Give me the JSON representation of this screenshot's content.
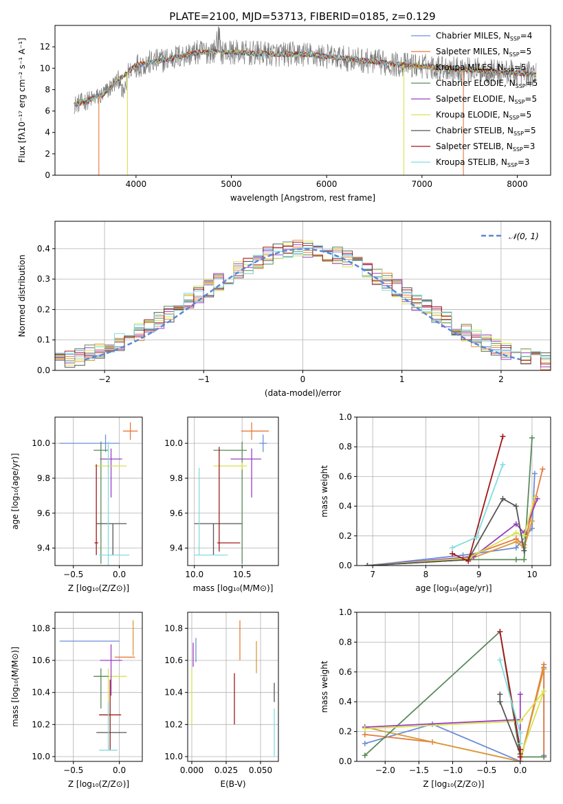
{
  "title": "PLATE=2100, MJD=53713, FIBERID=0185, z=0.129",
  "colors": {
    "Chabrier MILES": "#6b8ed6",
    "Salpeter MILES": "#e8793a",
    "Kroupa MILES": "#d89a3a",
    "Chabrier ELODIE": "#5a8a5a",
    "Salpeter ELODIE": "#9b3dbf",
    "Kroupa ELODIE": "#d7e24a",
    "Chabrier STELIB": "#555555",
    "Salpeter STELIB": "#a01818",
    "Kroupa STELIB": "#7fdde0"
  },
  "chart_data": [
    {
      "id": "spectrum",
      "type": "line",
      "title": "PLATE=2100, MJD=53713, FIBERID=0185, z=0.129",
      "xlabel": "wavelength [Angstrom, rest frame]",
      "ylabel": "Flux [fλ10⁻¹⁷ erg cm⁻² s⁻¹ A⁻¹]",
      "xlim": [
        3150,
        8350
      ],
      "ylim": [
        0,
        14
      ],
      "xticks": [
        4000,
        5000,
        6000,
        7000,
        8000
      ],
      "yticks": [
        0,
        2,
        4,
        6,
        8,
        10,
        12
      ],
      "grid": false,
      "legend_position": "top-right",
      "legend": [
        {
          "model": "Chabrier MILES",
          "label": "Chabrier MILES, N",
          "sub": "SSP",
          "tail": "=4"
        },
        {
          "model": "Salpeter MILES",
          "label": "Salpeter MILES, N",
          "sub": "SSP",
          "tail": "=5"
        },
        {
          "model": "Kroupa MILES",
          "label": "Kroupa MILES, N",
          "sub": "SSP",
          "tail": "=5"
        },
        {
          "model": "Chabrier ELODIE",
          "label": "Chabrier ELODIE, N",
          "sub": "SSP",
          "tail": "=5"
        },
        {
          "model": "Salpeter ELODIE",
          "label": "Salpeter ELODIE, N",
          "sub": "SSP",
          "tail": "=5"
        },
        {
          "model": "Kroupa ELODIE",
          "label": "Kroupa ELODIE, N",
          "sub": "SSP",
          "tail": "=5"
        },
        {
          "model": "Chabrier STELIB",
          "label": "Chabrier STELIB, N",
          "sub": "SSP",
          "tail": "=5"
        },
        {
          "model": "Salpeter STELIB",
          "label": "Salpeter STELIB, N",
          "sub": "SSP",
          "tail": "=3"
        },
        {
          "model": "Kroupa STELIB",
          "label": "Kroupa STELIB, N",
          "sub": "SSP",
          "tail": "=3"
        }
      ],
      "data_x_range": [
        3350,
        8200
      ],
      "continuum": {
        "x": [
          3350,
          3500,
          3650,
          3800,
          4000,
          4200,
          4400,
          4600,
          4800,
          5000,
          5200,
          5500,
          5800,
          6100,
          6400,
          6700,
          7000,
          7300,
          7600,
          7900,
          8200
        ],
        "y": [
          6.6,
          7.0,
          7.5,
          8.8,
          10.3,
          10.6,
          11.0,
          11.4,
          11.6,
          11.5,
          11.4,
          11.3,
          11.3,
          11.0,
          10.7,
          10.4,
          10.2,
          10.0,
          9.8,
          9.6,
          9.4
        ]
      },
      "model_cutoffs": [
        {
          "model": "Salpeter MILES",
          "x": [
            3350,
            3610
          ],
          "y": 0
        },
        {
          "model": "Kroupa ELODIE",
          "x": [
            3880,
            3910
          ],
          "y": 0
        },
        {
          "model": "Kroupa ELODIE",
          "x": [
            6790,
            6810
          ],
          "y": 0
        },
        {
          "model": "Salpeter MILES",
          "x": [
            7420,
            7435
          ],
          "y": 0
        }
      ]
    },
    {
      "id": "residuals",
      "type": "bar",
      "xlabel": "(data-model)/error",
      "ylabel": "Normed distribution",
      "xlim": [
        -2.5,
        2.5
      ],
      "ylim": [
        0,
        0.49
      ],
      "xticks": [
        -2,
        -1,
        0,
        1,
        2
      ],
      "yticks": [
        0.0,
        0.1,
        0.2,
        0.3,
        0.4
      ],
      "grid": true,
      "legend_position": "top-right",
      "legend": [
        {
          "label": "𝒩(0, 1)",
          "style": "dashed",
          "color": "#5a86d6"
        }
      ],
      "bin_width": 0.1,
      "reference_curve": {
        "name": "𝒩(0, 1)",
        "mean": 0,
        "sigma": 1
      }
    },
    {
      "id": "age-vs-Z",
      "type": "scatter",
      "xlabel": "Z [log₁₀(Z/Z⊙)]",
      "ylabel": "age  [log₁₀(age/yr)]",
      "xlim": [
        -0.7,
        0.25
      ],
      "ylim": [
        9.3,
        10.15
      ],
      "xticks": [
        -0.5,
        0.0
      ],
      "yticks": [
        9.4,
        9.6,
        9.8,
        10.0
      ],
      "grid": true,
      "points": [
        {
          "model": "Chabrier MILES",
          "x": -0.15,
          "xerr": [
            0.5,
            0.15
          ],
          "y": 10.0,
          "yerr": [
            0.05,
            0.05
          ]
        },
        {
          "model": "Salpeter MILES",
          "x": 0.12,
          "xerr": [
            0.08,
            0.08
          ],
          "y": 10.07,
          "yerr": [
            0.05,
            0.05
          ]
        },
        {
          "model": "Chabrier ELODIE",
          "x": -0.2,
          "xerr": [
            0.08,
            0.08
          ],
          "y": 9.96,
          "yerr": [
            0.65,
            0.05
          ]
        },
        {
          "model": "Salpeter ELODIE",
          "x": -0.09,
          "xerr": [
            0.12,
            0.12
          ],
          "y": 9.91,
          "yerr": [
            0.22,
            0.06
          ]
        },
        {
          "model": "Kroupa ELODIE",
          "x": -0.12,
          "xerr": [
            0.15,
            0.2
          ],
          "y": 9.87,
          "yerr": [
            0.02,
            0.02
          ]
        },
        {
          "model": "Chabrier STELIB",
          "x": -0.07,
          "xerr": [
            0.18,
            0.15
          ],
          "y": 9.54,
          "yerr": [
            0.18,
            0.0
          ]
        },
        {
          "model": "Salpeter STELIB",
          "x": -0.25,
          "xerr": [
            0.02,
            0.02
          ],
          "y": 9.43,
          "yerr": [
            0.07,
            0.45
          ]
        },
        {
          "model": "Kroupa STELIB",
          "x": -0.12,
          "xerr": [
            0.1,
            0.23
          ],
          "y": 9.36,
          "yerr": [
            0.07,
            0.65
          ]
        }
      ]
    },
    {
      "id": "age-vs-mass",
      "type": "scatter",
      "xlabel": "mass [log₁₀(M/M⊙)]",
      "ylabel": "",
      "xlim": [
        9.93,
        10.88
      ],
      "ylim": [
        9.3,
        10.15
      ],
      "xticks": [
        10.0,
        10.5
      ],
      "yticks": [
        9.4,
        9.6,
        9.8,
        10.0
      ],
      "grid": true,
      "points": [
        {
          "model": "Chabrier MILES",
          "x": 10.72,
          "xerr": [
            0.04,
            0.04
          ],
          "y": 10.0,
          "yerr": [
            0.05,
            0.05
          ]
        },
        {
          "model": "Salpeter MILES",
          "x": 10.6,
          "xerr": [
            0.11,
            0.18
          ],
          "y": 10.07,
          "yerr": [
            0.05,
            0.05
          ]
        },
        {
          "model": "Chabrier ELODIE",
          "x": 10.5,
          "xerr": [
            0.3,
            0.05
          ],
          "y": 9.96,
          "yerr": [
            0.65,
            0.05
          ]
        },
        {
          "model": "Salpeter ELODIE",
          "x": 10.6,
          "xerr": [
            0.22,
            0.1
          ],
          "y": 9.91,
          "yerr": [
            0.22,
            0.06
          ]
        },
        {
          "model": "Kroupa ELODIE",
          "x": 10.5,
          "xerr": [
            0.3,
            0.05
          ],
          "y": 9.87,
          "yerr": [
            0.02,
            0.02
          ]
        },
        {
          "model": "Chabrier STELIB",
          "x": 10.2,
          "xerr": [
            0.2,
            0.3
          ],
          "y": 9.54,
          "yerr": [
            0.18,
            0.0
          ]
        },
        {
          "model": "Salpeter STELIB",
          "x": 10.26,
          "xerr": [
            0.02,
            0.22
          ],
          "y": 9.43,
          "yerr": [
            0.05,
            0.55
          ]
        },
        {
          "model": "Kroupa STELIB",
          "x": 10.05,
          "xerr": [
            0.05,
            0.3
          ],
          "y": 9.36,
          "yerr": [
            0.0,
            0.5
          ]
        }
      ]
    },
    {
      "id": "mass-weight-vs-age",
      "type": "line",
      "xlabel": "age  [log₁₀(age/yr)]",
      "ylabel": "mass weight",
      "xlim": [
        6.7,
        10.35
      ],
      "ylim": [
        0,
        1.0
      ],
      "xticks": [
        7,
        8,
        9,
        10
      ],
      "yticks": [
        0.0,
        0.2,
        0.4,
        0.6,
        0.8,
        1.0
      ],
      "grid": true,
      "series": [
        {
          "model": "Chabrier MILES",
          "x": [
            6.9,
            8.7,
            9.7,
            10.0,
            10.05
          ],
          "y": [
            0.0,
            0.07,
            0.12,
            0.25,
            0.62
          ]
        },
        {
          "model": "Salpeter MILES",
          "x": [
            6.9,
            8.7,
            9.7,
            9.85,
            10.2
          ],
          "y": [
            0.0,
            0.05,
            0.18,
            0.14,
            0.65
          ]
        },
        {
          "model": "Kroupa MILES",
          "x": [
            6.9,
            8.8,
            9.7,
            9.85,
            10.0
          ],
          "y": [
            0.0,
            0.04,
            0.16,
            0.12,
            0.3
          ]
        },
        {
          "model": "Chabrier ELODIE",
          "x": [
            6.9,
            8.8,
            9.7,
            9.85,
            10.0
          ],
          "y": [
            0.0,
            0.04,
            0.04,
            0.04,
            0.86
          ]
        },
        {
          "model": "Salpeter ELODIE",
          "x": [
            6.9,
            8.9,
            9.7,
            9.85,
            10.1
          ],
          "y": [
            0.0,
            0.06,
            0.28,
            0.22,
            0.45
          ]
        },
        {
          "model": "Kroupa ELODIE",
          "x": [
            6.9,
            8.8,
            9.7,
            9.85,
            10.05
          ],
          "y": [
            0.0,
            0.05,
            0.22,
            0.2,
            0.46
          ]
        },
        {
          "model": "Chabrier STELIB",
          "x": [
            6.9,
            8.8,
            9.45,
            9.7,
            9.85
          ],
          "y": [
            0.0,
            0.04,
            0.45,
            0.4,
            0.1
          ]
        },
        {
          "model": "Salpeter STELIB",
          "x": [
            8.5,
            8.8,
            9.45
          ],
          "y": [
            0.08,
            0.03,
            0.87
          ]
        },
        {
          "model": "Kroupa STELIB",
          "x": [
            8.5,
            8.95,
            9.45
          ],
          "y": [
            0.12,
            0.19,
            0.68
          ]
        }
      ]
    },
    {
      "id": "mass-vs-Z",
      "type": "scatter",
      "xlabel": "Z [log₁₀(Z/Z⊙)]",
      "ylabel": "mass [log₁₀(M/M⊙)]",
      "xlim": [
        -0.7,
        0.25
      ],
      "ylim": [
        9.97,
        10.9
      ],
      "xticks": [
        -0.5,
        0.0
      ],
      "yticks": [
        10.0,
        10.2,
        10.4,
        10.6,
        10.8
      ],
      "grid": true,
      "points": [
        {
          "model": "Chabrier MILES",
          "x": -0.15,
          "xerr": [
            0.5,
            0.15
          ],
          "y": 10.72,
          "yerr": [
            0.0,
            0.0
          ]
        },
        {
          "model": "Salpeter MILES",
          "x": 0.07,
          "xerr": [
            0.12,
            0.1
          ],
          "y": 10.62,
          "yerr": [
            0.0,
            0.0
          ]
        },
        {
          "model": "Kroupa ELODIE",
          "x": -0.12,
          "xerr": [
            0.15,
            0.2
          ],
          "y": 10.5,
          "yerr": [
            0.3,
            0.05
          ]
        },
        {
          "model": "Salpeter ELODIE",
          "x": -0.09,
          "xerr": [
            0.12,
            0.12
          ],
          "y": 10.6,
          "yerr": [
            0.22,
            0.1
          ]
        },
        {
          "model": "Chabrier ELODIE",
          "x": -0.2,
          "xerr": [
            0.08,
            0.08
          ],
          "y": 10.5,
          "yerr": [
            0.2,
            0.05
          ]
        },
        {
          "model": "Chabrier STELIB",
          "x": -0.07,
          "xerr": [
            0.18,
            0.15
          ],
          "y": 10.15,
          "yerr": [
            0.0,
            0.0
          ]
        },
        {
          "model": "Salpeter STELIB",
          "x": -0.1,
          "xerr": [
            0.12,
            0.12
          ],
          "y": 10.26,
          "yerr": [
            0.22,
            0.22
          ]
        },
        {
          "model": "Kroupa STELIB",
          "x": -0.12,
          "xerr": [
            0.1,
            0.1
          ],
          "y": 10.04,
          "yerr": [
            0.0,
            0.3
          ]
        },
        {
          "model": "Kroupa MILES",
          "x": 0.15,
          "xerr": [
            0.0,
            0.0
          ],
          "y": 10.73,
          "yerr": [
            0.1,
            0.12
          ]
        }
      ]
    },
    {
      "id": "mass-vs-EBV",
      "type": "scatter",
      "xlabel": "E(B-V)",
      "ylabel": "",
      "xlim": [
        -0.003,
        0.063
      ],
      "ylim": [
        9.97,
        10.9
      ],
      "xticks": [
        0.0,
        0.025,
        0.05
      ],
      "yticks": [
        10.0,
        10.2,
        10.4,
        10.6,
        10.8
      ],
      "grid": true,
      "points": [
        {
          "model": "Chabrier MILES",
          "x": 0.003,
          "y": 10.66,
          "yerr": [
            0.07,
            0.08
          ]
        },
        {
          "model": "Salpeter ELODIE",
          "x": 0.001,
          "y": 10.63,
          "yerr": [
            0.07,
            0.08
          ]
        },
        {
          "model": "Kroupa ELODIE",
          "x": 0.0,
          "y": 10.45,
          "yerr": [
            0.25,
            0.1
          ]
        },
        {
          "model": "Kroupa MILES",
          "x": 0.047,
          "y": 10.62,
          "yerr": [
            0.1,
            0.1
          ]
        },
        {
          "model": "Salpeter STELIB",
          "x": 0.031,
          "y": 10.36,
          "yerr": [
            0.16,
            0.16
          ]
        },
        {
          "model": "Salpeter MILES",
          "x": 0.035,
          "y": 10.72,
          "yerr": [
            0.12,
            0.13
          ]
        },
        {
          "model": "Chabrier STELIB",
          "x": 0.06,
          "y": 10.4,
          "yerr": [
            0.06,
            0.06
          ]
        },
        {
          "model": "Kroupa STELIB",
          "x": 0.06,
          "y": 10.18,
          "yerr": [
            0.18,
            0.12
          ]
        }
      ]
    },
    {
      "id": "mass-weight-vs-Z",
      "type": "line",
      "xlabel": "Z [log₁₀(Z/Z⊙)]",
      "ylabel": "mass weight",
      "xlim": [
        -2.42,
        0.45
      ],
      "ylim": [
        0,
        1.0
      ],
      "xticks": [
        -2.0,
        -1.5,
        -1.0,
        -0.5,
        0.0
      ],
      "yticks": [
        0.0,
        0.2,
        0.4,
        0.6,
        0.8,
        1.0
      ],
      "grid": true,
      "series": [
        {
          "model": "Chabrier MILES",
          "x": [
            -2.3,
            -1.3,
            0.0,
            0.35,
            0.35
          ],
          "y": [
            0.12,
            0.25,
            0.0,
            0.63,
            0.04
          ]
        },
        {
          "model": "Salpeter MILES",
          "x": [
            -2.3,
            -1.3,
            0.0,
            0.35,
            0.35
          ],
          "y": [
            0.18,
            0.13,
            0.0,
            0.65,
            0.03
          ]
        },
        {
          "model": "Kroupa MILES",
          "x": [
            -2.3,
            0.0,
            0.35
          ],
          "y": [
            0.23,
            0.0,
            0.62
          ]
        },
        {
          "model": "Chabrier ELODIE",
          "x": [
            -2.3,
            -0.3,
            0.0,
            0.35
          ],
          "y": [
            0.04,
            0.87,
            0.03,
            0.03
          ]
        },
        {
          "model": "Salpeter ELODIE",
          "x": [
            -2.3,
            0.0,
            0.0,
            0.0
          ],
          "y": [
            0.23,
            0.28,
            0.45,
            0.0
          ]
        },
        {
          "model": "Kroupa ELODIE",
          "x": [
            -2.3,
            0.0,
            0.35,
            0.0
          ],
          "y": [
            0.22,
            0.27,
            0.47,
            0.03
          ]
        },
        {
          "model": "Chabrier STELIB",
          "x": [
            -0.3,
            -0.3,
            0.0
          ],
          "y": [
            0.45,
            0.4,
            0.05
          ]
        },
        {
          "model": "Salpeter STELIB",
          "x": [
            -0.3,
            0.0,
            0.0
          ],
          "y": [
            0.87,
            0.08,
            0.03
          ]
        },
        {
          "model": "Kroupa STELIB",
          "x": [
            -0.3,
            0.0,
            0.0
          ],
          "y": [
            0.68,
            0.19,
            0.12
          ]
        }
      ]
    }
  ]
}
